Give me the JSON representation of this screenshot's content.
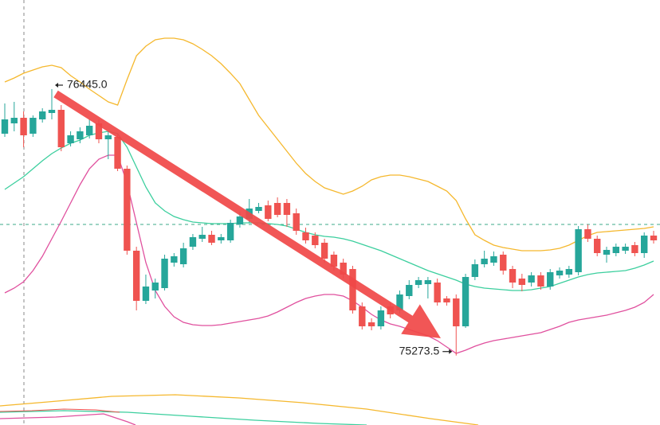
{
  "chart_data": {
    "type": "candlestick",
    "ylim": [
      75122,
      76837
    ],
    "up_color": "#26a69a",
    "down_color": "#ef5350",
    "open": [
      76249,
      76294.5,
      76319,
      76249,
      76312,
      76340,
      76354,
      76207,
      76224.5,
      76242,
      76294.5,
      76224.5,
      76235,
      76095,
      75734.5,
      75514,
      75559.5,
      75570,
      75682,
      75675,
      75752,
      75787,
      75804.5,
      75780,
      75780,
      75850,
      75874.5,
      75909.5,
      75934,
      75944.5,
      75944.5,
      75899,
      75815,
      75801,
      75769.5,
      75717,
      75682,
      75654,
      75489.5,
      75419.5,
      75402,
      75489.5,
      75472,
      75535,
      75584,
      75587.5,
      75594.5,
      75524.5,
      75524.5,
      75402,
      75619,
      75675,
      75682,
      75717,
      75654,
      75612,
      75594.5,
      75626,
      75577,
      75626,
      75629.5,
      75640,
      75829,
      75787,
      75717,
      75724,
      75734.5,
      75759,
      75724,
      75801
    ],
    "high": [
      76382,
      76389,
      76347,
      76329.5,
      76361,
      76445,
      76375,
      76259.5,
      76277,
      76312,
      76312,
      76259.5,
      76249,
      76109,
      75752,
      75629.5,
      75612,
      75717,
      75724,
      75769.5,
      75808,
      75839.5,
      75822,
      75808,
      75871,
      75906,
      75962,
      75944.5,
      75955,
      75969,
      75962,
      75920,
      75836,
      75815,
      75787,
      75731,
      75699.5,
      75668,
      75507,
      75437,
      75489.5,
      75507,
      75559.5,
      75605,
      75619,
      75619,
      75612,
      75535,
      75542,
      75633,
      75696,
      75734.5,
      75731,
      75731,
      75668,
      75633,
      75640,
      75640,
      75654,
      75661,
      75668,
      75843,
      75850,
      75801,
      75752,
      75766,
      75766,
      75773,
      75815,
      75822
    ],
    "low": [
      76235,
      76259.5,
      76189.5,
      76235,
      76298,
      76312,
      76172,
      76193,
      76207,
      76228,
      76207,
      76137,
      76084.5,
      75717,
      75472,
      75500,
      75524.5,
      75559.5,
      75664.5,
      75661,
      75738,
      75773,
      75759,
      75766,
      75769.5,
      75836,
      75857,
      75899,
      75864,
      75881.5,
      75839.5,
      75804.5,
      75766,
      75745,
      75682,
      75647,
      75612,
      75458,
      75388,
      75384.5,
      75388,
      75437,
      75458,
      75521,
      75570,
      75524.5,
      75493,
      75493,
      75273.5,
      75395,
      75605,
      75661,
      75668,
      75629.5,
      75570,
      75556,
      75577,
      75563,
      75563,
      75612,
      75615.5,
      75626,
      75773,
      75710,
      75682,
      75710,
      75720.5,
      75710,
      75703,
      75766
    ],
    "close": [
      76312,
      76319,
      76242,
      76319,
      76347,
      76354,
      76189.5,
      76242,
      76259.5,
      76284,
      76224.5,
      76242,
      76095,
      75734.5,
      75514,
      75577,
      75594.5,
      75699.5,
      75710,
      75745,
      75794,
      75804.5,
      75769.5,
      75794,
      75857,
      75885,
      75920,
      75927,
      75874.5,
      75892,
      75892,
      75822,
      75780,
      75759,
      75699.5,
      75664.5,
      75629.5,
      75472,
      75402,
      75402,
      75472,
      75454.5,
      75542,
      75584,
      75605,
      75605,
      75507,
      75507,
      75402,
      75619,
      75675,
      75699.5,
      75710,
      75647,
      75594.5,
      75584,
      75626,
      75577,
      75640,
      75647,
      75654,
      75829,
      75787,
      75724,
      75738,
      75752,
      75752,
      75724,
      75801,
      75780
    ],
    "series": [
      {
        "color": "#f5b82e",
        "values": [
          76476.5,
          76494,
          76515,
          76529,
          76543,
          76550,
          76539.5,
          76504.5,
          76476.5,
          76445,
          76417,
          76389,
          76375,
          76487,
          76592,
          76634,
          76662,
          76669,
          76669,
          76662,
          76644.5,
          76620,
          76592,
          76557,
          76515,
          76469.5,
          76399.5,
          76329.5,
          76277,
          76224.5,
          76172,
          76119.5,
          76074,
          76039,
          76011,
          75997,
          75983,
          75997,
          76018,
          76046,
          76060,
          76067,
          76067,
          76060,
          76049.5,
          76039,
          76018,
          75997,
          75955,
          75874.5,
          75804.5,
          75780,
          75759,
          75748.5,
          75741.5,
          75734.5,
          75734.5,
          75734.5,
          75738,
          75745,
          75759,
          75780,
          75801,
          75815,
          75818.5,
          75822,
          75825.5,
          75829,
          75832.5,
          75839.5
        ]
      },
      {
        "color": "#3ccf9e",
        "values": [
          76004,
          76032,
          76060,
          76095,
          76130,
          76161.5,
          76186,
          76207,
          76221,
          76242,
          76252.5,
          76259.5,
          76249,
          76189.5,
          76102,
          76014.5,
          75944.5,
          75909.5,
          75885,
          75871,
          75860.5,
          75857,
          75853.5,
          75853.5,
          75853.5,
          75857,
          75857,
          75857,
          75853.5,
          75850,
          75843,
          75829,
          75815,
          75804.5,
          75797.5,
          75794,
          75787,
          75776.5,
          75762.5,
          75748.5,
          75734.5,
          75717,
          75699.5,
          75682,
          75664.5,
          75647,
          75633,
          75619,
          75605,
          75587.5,
          75577,
          75570,
          75566.5,
          75563,
          75559.5,
          75559.5,
          75563,
          75570,
          75577,
          75591,
          75605,
          75619,
          75629.5,
          75636.5,
          75640,
          75643.5,
          75647,
          75657.5,
          75671.5,
          75689
        ]
      },
      {
        "color": "#e0509e",
        "values": [
          75549,
          75570,
          75598,
          75647,
          75710,
          75787,
          75864,
          75944.5,
          76025,
          76095,
          76137,
          76154.5,
          76154.5,
          76032,
          75857,
          75682,
          75559.5,
          75489.5,
          75444,
          75419.5,
          75409,
          75405.5,
          75405.5,
          75409,
          75416,
          75423,
          75430,
          75437,
          75447.5,
          75465,
          75486,
          75507,
          75524.5,
          75535,
          75542,
          75542,
          75535,
          75514,
          75486,
          75454.5,
          75430,
          75412.5,
          75402,
          75388,
          75374,
          75360,
          75339,
          75311,
          75283,
          75297,
          75314.5,
          75328.5,
          75339,
          75346,
          75353,
          75360,
          75367,
          75374,
          75388,
          75402,
          75419.5,
          75430,
          75437,
          75444,
          75451,
          75461.5,
          75472,
          75486,
          75507,
          75542
        ]
      }
    ],
    "high_label": "76445.0",
    "low_label": "75273.5"
  }
}
